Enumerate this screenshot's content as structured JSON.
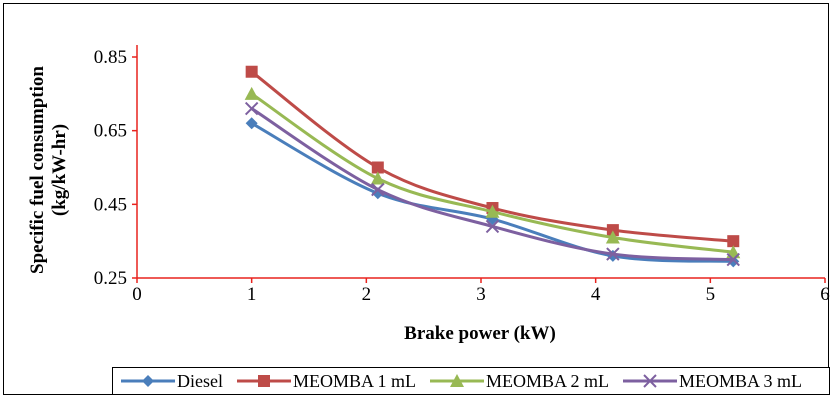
{
  "chart_data": {
    "type": "line",
    "title": "",
    "xlabel": "Brake power (kW)",
    "ylabel": [
      "Specific fuel consumption",
      "(kg/kW-hr)"
    ],
    "xlim": [
      0,
      6
    ],
    "ylim": [
      0.25,
      0.85
    ],
    "x_ticks": [
      0,
      1,
      2,
      3,
      4,
      5,
      6
    ],
    "y_ticks": [
      0.25,
      0.45,
      0.65,
      0.85
    ],
    "y_tick_labels": [
      "0.25",
      "0.45",
      "0.65",
      "0.85"
    ],
    "grid": false,
    "legend_position": "bottom",
    "axis_color": "#e8231e",
    "series": [
      {
        "name": "Diesel",
        "color": "#4a7ebb",
        "marker": "diamond",
        "x": [
          1.0,
          2.1,
          3.1,
          4.15,
          5.2
        ],
        "y": [
          0.67,
          0.48,
          0.41,
          0.31,
          0.295
        ]
      },
      {
        "name": "MEOMBA 1 mL",
        "color": "#be4b48",
        "marker": "square",
        "x": [
          1.0,
          2.1,
          3.1,
          4.15,
          5.2
        ],
        "y": [
          0.81,
          0.55,
          0.44,
          0.38,
          0.35
        ]
      },
      {
        "name": "MEOMBA 2 mL",
        "color": "#98b954",
        "marker": "triangle",
        "x": [
          1.0,
          2.1,
          3.1,
          4.15,
          5.2
        ],
        "y": [
          0.75,
          0.52,
          0.43,
          0.36,
          0.32
        ]
      },
      {
        "name": "MEOMBA 3 mL",
        "color": "#7d60a0",
        "marker": "x",
        "x": [
          1.0,
          2.1,
          3.1,
          4.15,
          5.2
        ],
        "y": [
          0.71,
          0.49,
          0.39,
          0.315,
          0.3
        ]
      }
    ]
  }
}
